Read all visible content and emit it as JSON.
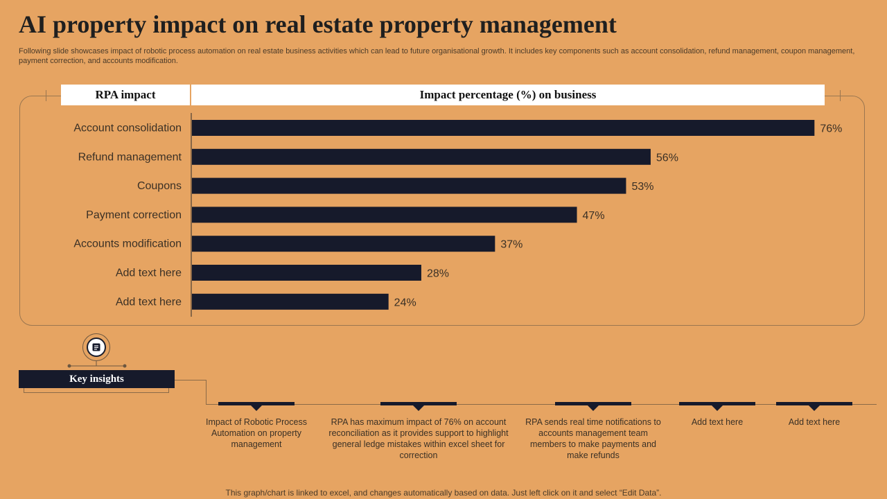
{
  "title": "AI property impact on real estate property management",
  "subtitle": "Following slide showcases impact of robotic process automation on real estate business activities which can lead to future organisational growth. It includes key components such as account consolidation, refund management, coupon management, payment correction, and accounts modification.",
  "table_header": {
    "left": "RPA impact",
    "right": "Impact percentage (%) on business"
  },
  "chart_data": {
    "type": "bar",
    "orientation": "horizontal",
    "categories": [
      "Account consolidation",
      "Refund management",
      "Coupons",
      "Payment correction",
      "Accounts modification",
      "Add text here",
      "Add text here"
    ],
    "values": [
      76,
      56,
      53,
      47,
      37,
      28,
      24
    ],
    "value_labels": [
      "76%",
      "56%",
      "53%",
      "47%",
      "37%",
      "28%",
      "24%"
    ],
    "xlim": [
      0,
      100
    ],
    "grid": false,
    "bar_color": "#161a2b"
  },
  "key_insights": {
    "label": "Key insights",
    "icon": "notepad-icon",
    "items": [
      "Impact of Robotic Process Automation on property management",
      "RPA has maximum impact of 76% on account reconciliation as it provides support to highlight general ledge mistakes within excel sheet for correction",
      "RPA sends real time notifications to accounts management team members to make payments and make refunds",
      "Add text here",
      "Add text here"
    ]
  },
  "footer": "This graph/chart is linked to excel,  and changes automatically based on data. Just left click on it and select “Edit Data”.",
  "colors": {
    "background": "#E6A462",
    "dark": "#161a2b"
  }
}
